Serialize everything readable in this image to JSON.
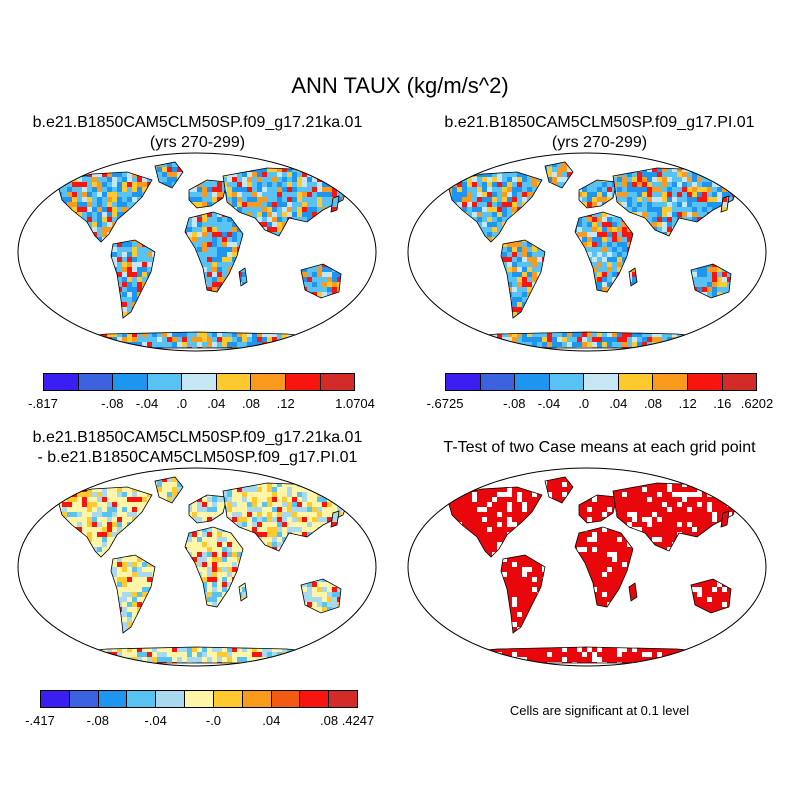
{
  "title": "ANN TAUX (kg/m/s^2)",
  "panels": [
    {
      "id": "case",
      "title_lines": [
        "b.e21.B1850CAM5CLM50SP.f09_g17.21ka.01",
        "(yrs 270-299)"
      ],
      "colorbar": {
        "colors": [
          "#3b1ef0",
          "#3d62e0",
          "#1e96f0",
          "#58c3f2",
          "#c6e6f4",
          "#fcc92e",
          "#f99a1c",
          "#f7150f",
          "#d32a2a"
        ],
        "labels": [
          "-.817",
          "-.08",
          "-.04",
          ".0",
          ".04",
          ".08",
          ".12",
          "1.0704"
        ]
      }
    },
    {
      "id": "reference",
      "title_lines": [
        "b.e21.B1850CAM5CLM50SP.f09_g17.PI.01",
        "(yrs 270-299)"
      ],
      "colorbar": {
        "colors": [
          "#3b1ef0",
          "#3d62e0",
          "#1e96f0",
          "#58c3f2",
          "#c6e6f4",
          "#fcc92e",
          "#f99a1c",
          "#f7150f",
          "#d32a2a"
        ],
        "labels": [
          "-.6725",
          "-.08",
          "-.04",
          ".0",
          ".04",
          ".08",
          ".12",
          ".16",
          ".6202"
        ]
      }
    },
    {
      "id": "difference",
      "title_lines": [
        "b.e21.B1850CAM5CLM50SP.f09_g17.21ka.01",
        "- b.e21.B1850CAM5CLM50SP.f09_g17.PI.01"
      ],
      "colorbar": {
        "colors": [
          "#3b1ef0",
          "#3d62e0",
          "#1e96f0",
          "#58c3f2",
          "#a9d9ef",
          "#fdf5a8",
          "#fcc92e",
          "#f99a1c",
          "#f35a14",
          "#f7150f",
          "#d32a2a"
        ],
        "labels": [
          "-.417",
          "-.08",
          "-.04",
          "-.0",
          ".04",
          ".08",
          ".4247"
        ]
      }
    },
    {
      "id": "ttest",
      "title_lines": [
        "T-Test of two Case means at each grid point"
      ],
      "note": "Cells are significant at 0.1 level"
    }
  ]
}
